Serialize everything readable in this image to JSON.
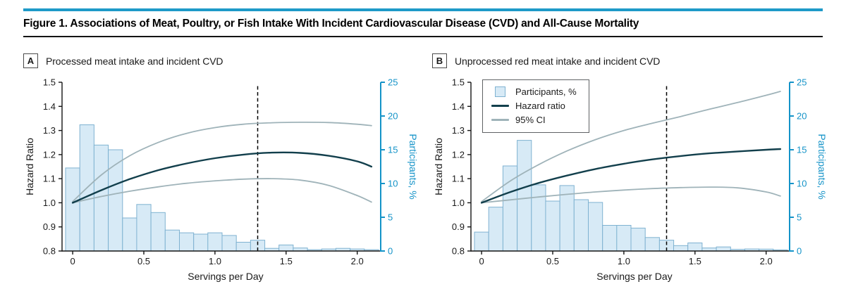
{
  "figure": {
    "title": "Figure 1. Associations of Meat, Poultry, or Fish Intake With Incident Cardiovascular Disease (CVD) and All-Cause Mortality"
  },
  "colors": {
    "accent_blue": "#1E9AC8",
    "axis_blue": "#1493C8",
    "bar_fill": "#D7EAF6",
    "bar_stroke": "#7FB2D1",
    "hazard_line": "#123F4C",
    "ci_line": "#9FB3B9",
    "dashed_line": "#000000",
    "axis_black": "#141414",
    "text": "#1A1A1A"
  },
  "legend": {
    "items": [
      {
        "label": "Participants, %",
        "swatch": "bar"
      },
      {
        "label": "Hazard ratio",
        "swatch": "dark-line"
      },
      {
        "label": "95% CI",
        "swatch": "gray-line"
      }
    ]
  },
  "panels": [
    {
      "label": "A",
      "title": "Processed meat intake and incident CVD"
    },
    {
      "label": "B",
      "title": "Unprocessed red meat intake and incident CVD"
    }
  ],
  "chart_data": [
    {
      "type": "bar",
      "subtype": "histogram with overlaid hazard-ratio spline and 95% CI curves",
      "panel": "A",
      "title": "Processed meat intake and incident CVD",
      "xlabel": "Servings per Day",
      "ylabel_left": "Hazard Ratio",
      "ylabel_right": "Participants, %",
      "xlim": [
        -0.075,
        2.165
      ],
      "x_tick_values": [
        0,
        0.5,
        1.0,
        1.5,
        2.0
      ],
      "x_ticks": [
        "0",
        "0.5",
        "1.0",
        "1.5",
        "2.0"
      ],
      "ylim_left": [
        0.8,
        1.5
      ],
      "y_ticks_left": [
        "0.8",
        "0.9",
        "1.0",
        "1.1",
        "1.2",
        "1.3",
        "1.4",
        "1.5"
      ],
      "ylim_right": [
        0,
        25
      ],
      "y_ticks_right": [
        0,
        5,
        10,
        15,
        20,
        25
      ],
      "reference_line_x": 1.3,
      "grid": false,
      "legend_visible": false,
      "histogram": {
        "bin_width": 0.1,
        "centers": [
          0.0,
          0.1,
          0.2,
          0.3,
          0.4,
          0.5,
          0.6,
          0.7,
          0.8,
          0.9,
          1.0,
          1.1,
          1.2,
          1.3,
          1.4,
          1.5,
          1.6,
          1.7,
          1.8,
          1.9,
          2.0,
          2.1
        ],
        "values_pct": [
          12.3,
          18.7,
          15.7,
          15.0,
          4.9,
          6.9,
          5.7,
          3.1,
          2.7,
          2.5,
          2.7,
          2.3,
          1.3,
          1.6,
          0.4,
          0.9,
          0.45,
          0.2,
          0.3,
          0.4,
          0.3,
          0.2
        ]
      },
      "curves": {
        "x": [
          0,
          0.2,
          0.4,
          0.6,
          0.8,
          1.0,
          1.2,
          1.4,
          1.6,
          1.8,
          2.0,
          2.1
        ],
        "hazard_ratio": [
          1.0,
          1.052,
          1.098,
          1.135,
          1.163,
          1.185,
          1.2,
          1.208,
          1.207,
          1.195,
          1.172,
          1.15
        ],
        "ci_upper": [
          1.005,
          1.115,
          1.195,
          1.25,
          1.288,
          1.312,
          1.326,
          1.332,
          1.334,
          1.333,
          1.326,
          1.32
        ],
        "ci_lower": [
          1.0,
          1.026,
          1.048,
          1.066,
          1.081,
          1.091,
          1.098,
          1.1,
          1.094,
          1.072,
          1.03,
          1.003
        ]
      }
    },
    {
      "type": "bar",
      "subtype": "histogram with overlaid hazard-ratio spline and 95% CI curves",
      "panel": "B",
      "title": "Unprocessed red meat intake and incident CVD",
      "xlabel": "Servings per Day",
      "ylabel_left": "Hazard Ratio",
      "ylabel_right": "Participants, %",
      "xlim": [
        -0.075,
        2.165
      ],
      "x_tick_values": [
        0,
        0.5,
        1.0,
        1.5,
        2.0
      ],
      "x_ticks": [
        "0",
        "0.5",
        "1.0",
        "1.5",
        "2.0"
      ],
      "ylim_left": [
        0.8,
        1.5
      ],
      "y_ticks_left": [
        "0.8",
        "0.9",
        "1.0",
        "1.1",
        "1.2",
        "1.3",
        "1.4",
        "1.5"
      ],
      "ylim_right": [
        0,
        25
      ],
      "y_ticks_right": [
        0,
        5,
        10,
        15,
        20,
        25
      ],
      "reference_line_x": 1.3,
      "grid": false,
      "legend_visible": true,
      "histogram": {
        "bin_width": 0.1,
        "centers": [
          0.0,
          0.1,
          0.2,
          0.3,
          0.4,
          0.5,
          0.6,
          0.7,
          0.8,
          0.9,
          1.0,
          1.1,
          1.2,
          1.3,
          1.4,
          1.5,
          1.6,
          1.7,
          1.8,
          1.9,
          2.0,
          2.1
        ],
        "values_pct": [
          2.8,
          6.5,
          12.6,
          16.4,
          9.8,
          7.4,
          9.7,
          7.6,
          7.2,
          3.8,
          3.8,
          3.4,
          2.0,
          1.6,
          0.8,
          1.2,
          0.45,
          0.6,
          0.25,
          0.3,
          0.28,
          0.17
        ]
      },
      "curves": {
        "x": [
          0,
          0.2,
          0.4,
          0.6,
          0.8,
          1.0,
          1.2,
          1.4,
          1.6,
          1.8,
          2.0,
          2.1
        ],
        "hazard_ratio": [
          1.0,
          1.044,
          1.082,
          1.113,
          1.14,
          1.162,
          1.18,
          1.194,
          1.205,
          1.213,
          1.22,
          1.223
        ],
        "ci_upper": [
          1.005,
          1.09,
          1.158,
          1.215,
          1.262,
          1.3,
          1.33,
          1.358,
          1.388,
          1.416,
          1.446,
          1.462
        ],
        "ci_lower": [
          1.0,
          1.012,
          1.024,
          1.035,
          1.045,
          1.053,
          1.059,
          1.063,
          1.065,
          1.062,
          1.045,
          1.028
        ]
      }
    }
  ]
}
